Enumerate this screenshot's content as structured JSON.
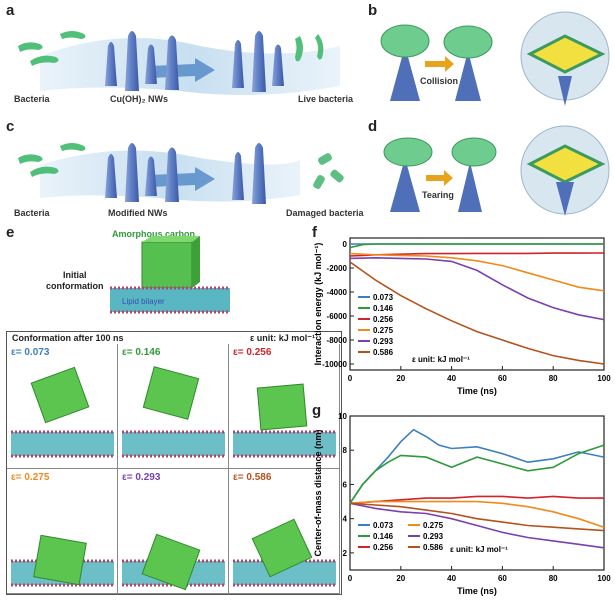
{
  "panels": {
    "a": {
      "label": "a",
      "captions": [
        "Bacteria",
        "Cu(OH)₂ NWs",
        "Live bacteria"
      ]
    },
    "b": {
      "label": "b",
      "arrow_text": "Collision"
    },
    "c": {
      "label": "c",
      "captions": [
        "Bacteria",
        "Modified NWs",
        "Damaged bacteria"
      ]
    },
    "d": {
      "label": "d",
      "arrow_text": "Tearing"
    },
    "e": {
      "label": "e",
      "amorphous_carbon": "Amorphous carbon",
      "initial": "Initial\nconformation",
      "lipid_bilayer": "Lipid bilayer",
      "grid_title": "Conformation after 100 ns",
      "unit_note": "ε unit: kJ mol⁻¹",
      "cells": [
        {
          "eps": "ε= 0.073",
          "color": "#3a7fc1"
        },
        {
          "eps": "ε= 0.146",
          "color": "#2e9a3a"
        },
        {
          "eps": "ε= 0.256",
          "color": "#d0232a"
        },
        {
          "eps": "ε= 0.275",
          "color": "#f08a1c"
        },
        {
          "eps": "ε= 0.293",
          "color": "#7a3fb0"
        },
        {
          "eps": "ε= 0.586",
          "color": "#b5521c"
        }
      ]
    },
    "f": {
      "label": "f"
    },
    "g": {
      "label": "g"
    }
  },
  "chart_data": [
    {
      "type": "line",
      "panel": "f",
      "xlabel": "Time (ns)",
      "ylabel": "Interaction energy (kJ mol⁻¹)",
      "xlim": [
        0,
        100
      ],
      "ylim": [
        -10500,
        500
      ],
      "xticks": [
        0,
        20,
        40,
        60,
        80,
        100
      ],
      "yticks": [
        0,
        -2000,
        -4000,
        -6000,
        -8000,
        -10000
      ],
      "legend_note": "ε unit: kJ mol⁻¹",
      "series": [
        {
          "name": "0.073",
          "color": "#3a7fc1",
          "x": [
            0,
            5,
            10,
            20,
            40,
            60,
            80,
            100
          ],
          "y": [
            0,
            0,
            0,
            0,
            0,
            0,
            0,
            0
          ]
        },
        {
          "name": "0.146",
          "color": "#2e9a3a",
          "x": [
            0,
            5,
            10,
            20,
            40,
            60,
            80,
            100
          ],
          "y": [
            -300,
            -50,
            0,
            0,
            0,
            0,
            0,
            0
          ]
        },
        {
          "name": "0.256",
          "color": "#d0232a",
          "x": [
            0,
            5,
            10,
            20,
            30,
            40,
            50,
            60,
            70,
            80,
            90,
            100
          ],
          "y": [
            -1000,
            -950,
            -900,
            -850,
            -800,
            -800,
            -780,
            -780,
            -780,
            -760,
            -760,
            -750
          ]
        },
        {
          "name": "0.275",
          "color": "#f08a1c",
          "x": [
            0,
            10,
            20,
            30,
            40,
            50,
            60,
            70,
            80,
            90,
            100
          ],
          "y": [
            -800,
            -900,
            -950,
            -1000,
            -1150,
            -1400,
            -1800,
            -2400,
            -3000,
            -3600,
            -3900
          ]
        },
        {
          "name": "0.293",
          "color": "#7a3fb0",
          "x": [
            0,
            10,
            20,
            30,
            40,
            50,
            60,
            70,
            80,
            90,
            100
          ],
          "y": [
            -1200,
            -1150,
            -1200,
            -1250,
            -1450,
            -2200,
            -3400,
            -4500,
            -5300,
            -5900,
            -6300
          ]
        },
        {
          "name": "0.586",
          "color": "#b5521c",
          "x": [
            0,
            10,
            20,
            30,
            40,
            50,
            60,
            70,
            80,
            90,
            100
          ],
          "y": [
            -1500,
            -3000,
            -4300,
            -5400,
            -6400,
            -7300,
            -8000,
            -8700,
            -9300,
            -9700,
            -10000
          ]
        }
      ]
    },
    {
      "type": "line",
      "panel": "g",
      "xlabel": "Time (ns)",
      "ylabel": "Center-of-mass distance (nm)",
      "xlim": [
        0,
        100
      ],
      "ylim": [
        1,
        10
      ],
      "xticks": [
        0,
        20,
        40,
        60,
        80,
        100
      ],
      "yticks": [
        2,
        4,
        6,
        8,
        10
      ],
      "legend_note": "ε unit: kJ mol⁻¹",
      "series": [
        {
          "name": "0.073",
          "color": "#3a7fc1",
          "x": [
            0,
            5,
            10,
            15,
            20,
            25,
            30,
            35,
            40,
            50,
            60,
            70,
            80,
            90,
            100
          ],
          "y": [
            4.9,
            6.0,
            6.8,
            7.6,
            8.5,
            9.2,
            8.8,
            8.3,
            8.1,
            8.2,
            7.8,
            7.3,
            7.5,
            7.9,
            7.6
          ]
        },
        {
          "name": "0.146",
          "color": "#2e9a3a",
          "x": [
            0,
            5,
            10,
            15,
            20,
            30,
            40,
            50,
            60,
            70,
            80,
            90,
            100
          ],
          "y": [
            4.9,
            6.0,
            6.8,
            7.3,
            7.7,
            7.6,
            7.0,
            7.6,
            7.2,
            6.8,
            7.0,
            7.8,
            8.3
          ]
        },
        {
          "name": "0.256",
          "color": "#d0232a",
          "x": [
            0,
            10,
            20,
            30,
            40,
            50,
            60,
            70,
            80,
            90,
            100
          ],
          "y": [
            4.9,
            5.0,
            5.1,
            5.2,
            5.2,
            5.3,
            5.3,
            5.2,
            5.3,
            5.2,
            5.2
          ]
        },
        {
          "name": "0.275",
          "color": "#f08a1c",
          "x": [
            0,
            10,
            20,
            30,
            40,
            50,
            60,
            70,
            80,
            90,
            100
          ],
          "y": [
            4.9,
            5.0,
            5.0,
            5.0,
            5.0,
            5.0,
            4.9,
            4.7,
            4.4,
            4.0,
            3.5
          ]
        },
        {
          "name": "0.293",
          "color": "#7a3fb0",
          "x": [
            0,
            10,
            20,
            30,
            40,
            50,
            60,
            70,
            80,
            90,
            100
          ],
          "y": [
            4.9,
            4.6,
            4.4,
            4.3,
            4.0,
            3.6,
            3.2,
            2.9,
            2.7,
            2.5,
            2.3
          ]
        },
        {
          "name": "0.586",
          "color": "#b5521c",
          "x": [
            0,
            10,
            20,
            30,
            40,
            50,
            60,
            70,
            80,
            90,
            100
          ],
          "y": [
            4.9,
            4.8,
            4.7,
            4.5,
            4.3,
            4.0,
            3.8,
            3.6,
            3.5,
            3.4,
            3.3
          ]
        }
      ]
    }
  ]
}
